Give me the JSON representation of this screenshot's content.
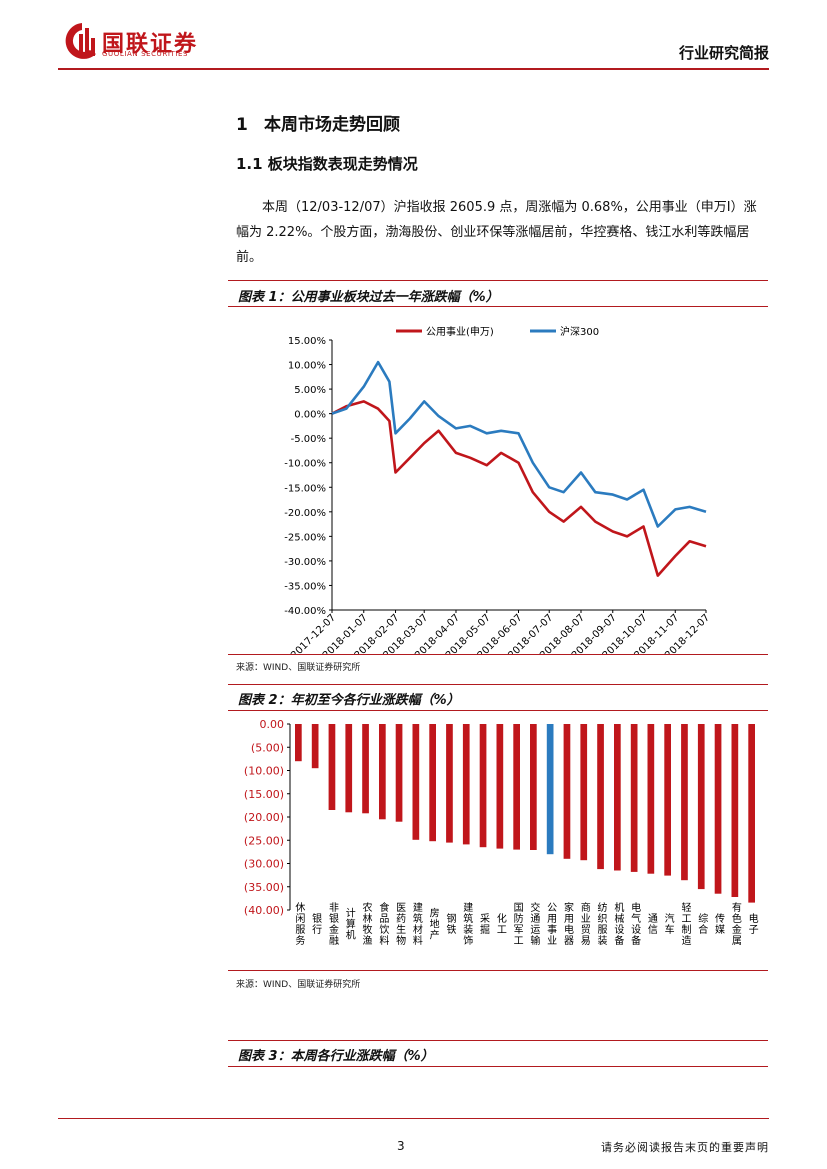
{
  "header": {
    "logo_cn": "国联证券",
    "logo_en": "GUOLIAN SECURITIES",
    "report_type": "行业研究简报"
  },
  "section": {
    "number": "1",
    "title": "本周市场走势回顾",
    "subsection": "1.1 板块指数表现走势情况",
    "paragraph": "本周（12/03-12/07）沪指收报 2605.9 点，周涨幅为 0.68%，公用事业（申万Ⅰ）涨幅为 2.22%。个股方面，渤海股份、创业环保等涨幅居前，华控赛格、钱江水利等跌幅居前。"
  },
  "figure1": {
    "title": "图表 1：公用事业板块过去一年涨跌幅（%）",
    "source": "来源：WIND、国联证券研究所"
  },
  "figure2": {
    "title": "图表 2：年初至今各行业涨跌幅（%）",
    "source": "来源：WIND、国联证券研究所"
  },
  "figure3": {
    "title": "图表 3：本周各行业涨跌幅（%）"
  },
  "footer": {
    "page": "3",
    "note": "请务必阅读报告末页的重要声明"
  },
  "chart_data": [
    {
      "type": "line",
      "legend_placement": "top",
      "y_ticks": [
        "15.00%",
        "10.00%",
        "5.00%",
        "0.00%",
        "-5.00%",
        "-10.00%",
        "-15.00%",
        "-20.00%",
        "-25.00%",
        "-30.00%",
        "-35.00%",
        "-40.00%"
      ],
      "ylim": [
        -40,
        15
      ],
      "x_ticks": [
        "2017-12-07",
        "2018-01-07",
        "2018-02-07",
        "2018-03-07",
        "2018-04-07",
        "2018-05-07",
        "2018-06-07",
        "2018-07-07",
        "2018-08-07",
        "2018-09-07",
        "2018-10-07",
        "2018-11-07",
        "2018-12-07"
      ],
      "x": [
        "2017-12-07",
        "2017-12-21",
        "2018-01-07",
        "2018-01-21",
        "2018-02-01",
        "2018-02-07",
        "2018-02-21",
        "2018-03-07",
        "2018-03-21",
        "2018-04-07",
        "2018-04-21",
        "2018-05-07",
        "2018-05-21",
        "2018-06-07",
        "2018-06-21",
        "2018-07-07",
        "2018-07-21",
        "2018-08-07",
        "2018-08-21",
        "2018-09-07",
        "2018-09-21",
        "2018-10-07",
        "2018-10-21",
        "2018-11-07",
        "2018-11-21",
        "2018-12-07"
      ],
      "series": [
        {
          "name": "公用事业(申万)",
          "color": "#c0161b",
          "values": [
            0.0,
            1.5,
            2.5,
            1.0,
            -1.5,
            -12.0,
            -9.0,
            -6.0,
            -3.5,
            -8.0,
            -9.0,
            -10.5,
            -8.0,
            -10.0,
            -16.0,
            -20.0,
            -22.0,
            -19.0,
            -22.0,
            -24.0,
            -25.0,
            -23.0,
            -33.0,
            -29.0,
            -26.0,
            -27.0
          ]
        },
        {
          "name": "沪深300",
          "color": "#2b7bbf",
          "values": [
            0.0,
            1.0,
            5.5,
            10.5,
            6.5,
            -4.0,
            -1.0,
            2.5,
            -0.5,
            -3.0,
            -2.5,
            -4.0,
            -3.5,
            -4.0,
            -10.0,
            -15.0,
            -16.0,
            -12.0,
            -16.0,
            -16.5,
            -17.5,
            -15.5,
            -23.0,
            -19.5,
            -19.0,
            -20.0
          ]
        }
      ]
    },
    {
      "type": "bar",
      "y_ticks": [
        "0.00",
        "(5.00)",
        "(10.00)",
        "(15.00)",
        "(20.00)",
        "(25.00)",
        "(30.00)",
        "(35.00)",
        "(40.00)"
      ],
      "ylim": [
        -40,
        0
      ],
      "highlight_color": "#2b7bbf",
      "bar_color": "#c0161b",
      "highlight_category": "公用事业",
      "categories": [
        "休闲服务",
        "银行",
        "非银金融",
        "计算机",
        "农林牧渔",
        "食品饮料",
        "医药生物",
        "建筑材料",
        "房地产",
        "钢铁",
        "建筑装饰",
        "采掘",
        "化工",
        "国防军工",
        "交通运输",
        "公用事业",
        "家用电器",
        "商业贸易",
        "纺织服装",
        "机械设备",
        "电气设备",
        "通信",
        "汽车",
        "轻工制造",
        "综合",
        "传媒",
        "有色金属",
        "电子"
      ],
      "values": [
        -8.0,
        -9.5,
        -18.5,
        -19.0,
        -19.2,
        -20.5,
        -21.0,
        -24.9,
        -25.2,
        -25.5,
        -25.9,
        -26.5,
        -26.8,
        -27.0,
        -27.1,
        -28.0,
        -29.0,
        -29.3,
        -31.2,
        -31.5,
        -31.8,
        -32.2,
        -32.6,
        -33.6,
        -35.5,
        -36.5,
        -37.2,
        -38.4
      ]
    }
  ]
}
